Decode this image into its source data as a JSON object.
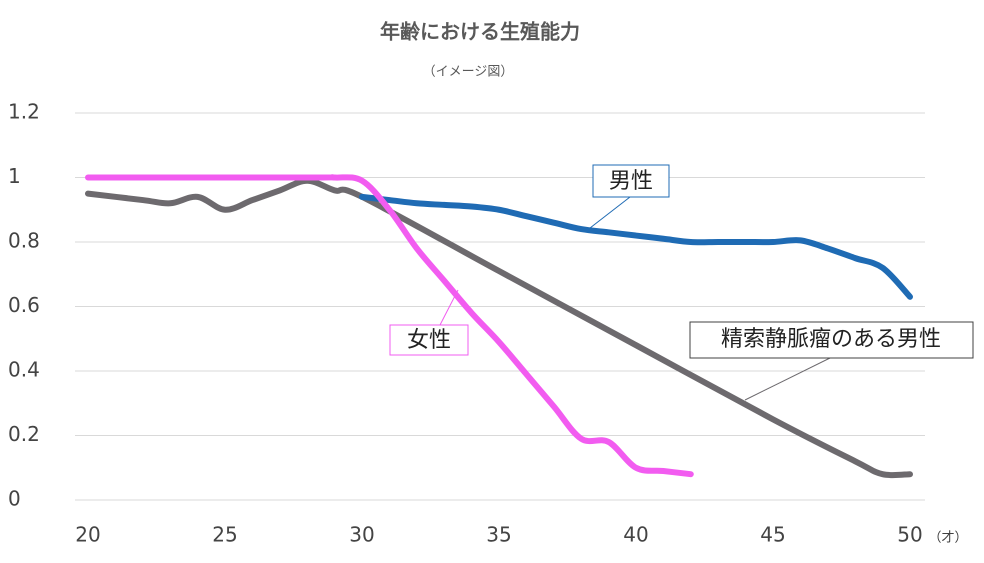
{
  "chart_data": {
    "type": "line",
    "title": "年齢における生殖能力",
    "subtitle": "（イメージ図）",
    "x_unit": "（才）",
    "xlim": [
      20,
      50
    ],
    "xticks": [
      20,
      25,
      30,
      35,
      40,
      45,
      50
    ],
    "ylim": [
      0,
      1.2
    ],
    "yticks": [
      0,
      0.2,
      0.4,
      0.6,
      0.8,
      1,
      1.2
    ],
    "grid": true,
    "series": [
      {
        "name": "男性",
        "color": "#1f6bb4",
        "x": [
          30,
          31,
          32,
          33,
          34,
          35,
          36,
          37,
          38,
          39,
          40,
          41,
          42,
          43,
          44,
          45,
          46,
          47,
          48,
          49,
          50
        ],
        "values": [
          0.94,
          0.93,
          0.92,
          0.915,
          0.91,
          0.9,
          0.88,
          0.86,
          0.84,
          0.83,
          0.82,
          0.81,
          0.8,
          0.8,
          0.8,
          0.8,
          0.805,
          0.78,
          0.75,
          0.72,
          0.63
        ]
      },
      {
        "name": "精索静脈瘤のある男性",
        "color": "#6d6a6e",
        "x": [
          20,
          22,
          23,
          24,
          25,
          26,
          27,
          28,
          29,
          30,
          35,
          40,
          45,
          48,
          49,
          50
        ],
        "values": [
          0.95,
          0.93,
          0.92,
          0.94,
          0.9,
          0.93,
          0.96,
          0.99,
          0.96,
          0.94,
          0.71,
          0.48,
          0.25,
          0.12,
          0.08,
          0.08
        ]
      },
      {
        "name": "女性",
        "color": "#f25cf0",
        "x": [
          20,
          28,
          29,
          30,
          31,
          32,
          33,
          34,
          35,
          36,
          37,
          38,
          39,
          40,
          41,
          42
        ],
        "values": [
          1,
          1,
          1,
          0.99,
          0.9,
          0.78,
          0.68,
          0.58,
          0.49,
          0.39,
          0.29,
          0.19,
          0.18,
          0.1,
          0.09,
          0.08
        ]
      }
    ]
  }
}
